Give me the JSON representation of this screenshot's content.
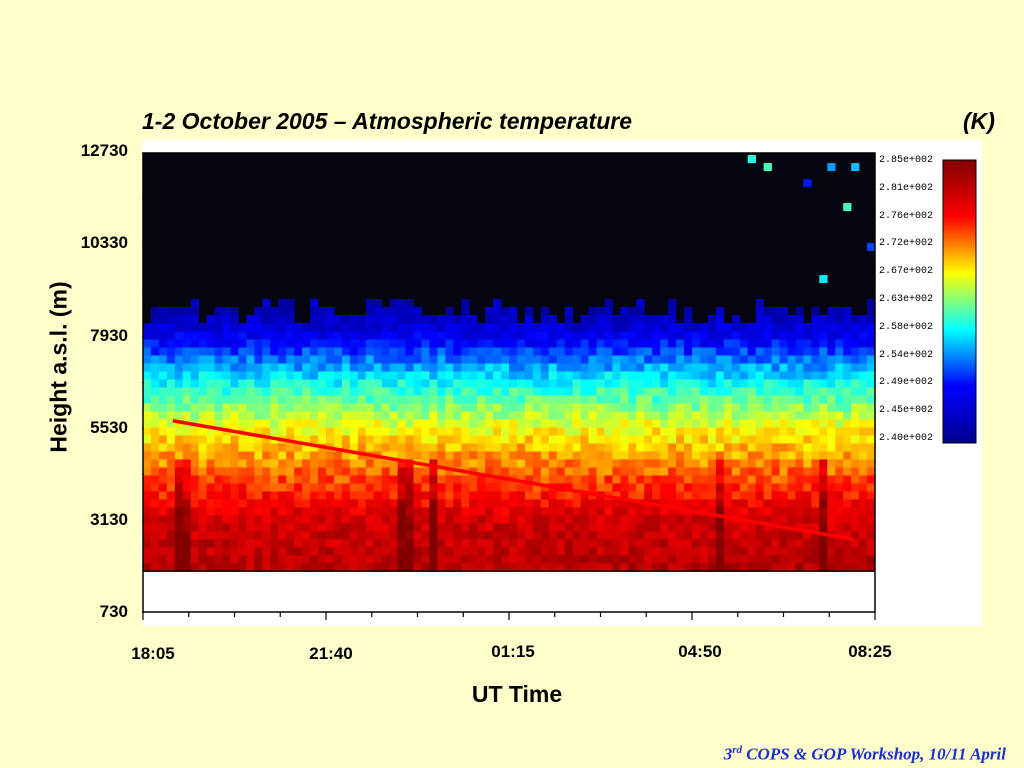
{
  "title": "1-2 October 2005 – Atmospheric temperature",
  "unit_label": "(K)",
  "footer": {
    "prefix": "3",
    "sup": "rd",
    "text": " COPS & GOP Workshop, 10/11 April"
  },
  "chart_data": {
    "type": "heatmap",
    "title": "1-2 October 2005 – Atmospheric temperature",
    "xlabel": "UT Time",
    "ylabel": "Height a.s.l. (m)",
    "x_tick_labels": [
      "18:05",
      "21:40",
      "01:15",
      "04:50",
      "08:25"
    ],
    "y_tick_labels": [
      "12730",
      "10330",
      "7930",
      "5530",
      "3130",
      "730"
    ],
    "y_tick_values": [
      12730,
      10330,
      7930,
      5530,
      3130,
      730
    ],
    "ylim": [
      730,
      12730
    ],
    "data_bottom_height_m": 1800,
    "colorbar": {
      "unit": "(K)",
      "labels": [
        "2.85e+002",
        "2.81e+002",
        "2.76e+002",
        "2.72e+002",
        "2.67e+002",
        "2.63e+002",
        "2.58e+002",
        "2.54e+002",
        "2.49e+002",
        "2.45e+002",
        "2.40e+002"
      ],
      "range": [
        240,
        287
      ],
      "colors": [
        "#00008f",
        "#0000ff",
        "#00ffff",
        "#ffff00",
        "#ff0000",
        "#800000"
      ]
    },
    "temperature_profile": {
      "height_m": [
        1800,
        3130,
        4000,
        5530,
        7000,
        7930,
        8600
      ],
      "temperature_K": [
        283,
        281,
        276,
        268,
        257,
        248,
        243
      ]
    },
    "signal_top_height_m": 8600,
    "trend_line": {
      "color": "#ff0000",
      "x": [
        "18:40",
        "08:00"
      ],
      "height_m": [
        5730,
        2630
      ]
    }
  }
}
